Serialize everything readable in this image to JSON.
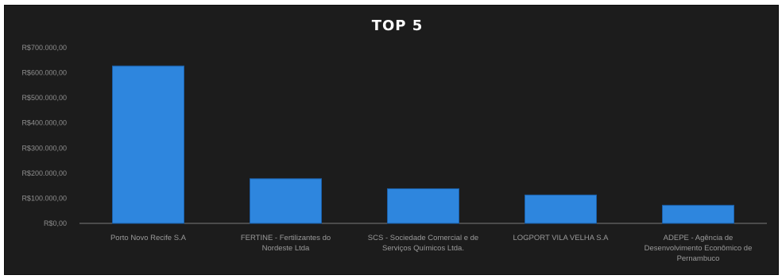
{
  "chart_data": {
    "type": "bar",
    "title": "TOP 5",
    "xlabel": "",
    "ylabel": "",
    "ylim": [
      0,
      700000
    ],
    "yticks": [
      {
        "value": 0,
        "label": "R$0,00"
      },
      {
        "value": 100000,
        "label": "R$100.000,00"
      },
      {
        "value": 200000,
        "label": "R$200.000,00"
      },
      {
        "value": 300000,
        "label": "R$300.000,00"
      },
      {
        "value": 400000,
        "label": "R$400.000,00"
      },
      {
        "value": 500000,
        "label": "R$500.000,00"
      },
      {
        "value": 600000,
        "label": "R$600.000,00"
      },
      {
        "value": 700000,
        "label": "R$700.000,00"
      }
    ],
    "categories": [
      [
        "Porto Novo Recife S.A"
      ],
      [
        "FERTINE - Fertilizantes do",
        "Nordeste Ltda"
      ],
      [
        "SCS - Sociedade Comercial e de",
        "Serviços Químicos Ltda."
      ],
      [
        "LOGPORT VILA VELHA S.A"
      ],
      [
        "ADEPE - Agência de",
        "Desenvolvimento Econômico de",
        "Pernambuco"
      ]
    ],
    "values": [
      627000,
      178000,
      138000,
      113000,
      72000
    ],
    "grid": false,
    "colors": {
      "bar": "#2e86de",
      "bar_edge": "#1b5fa8",
      "background": "#1c1c1c",
      "axis": "#7a7a7a"
    }
  }
}
